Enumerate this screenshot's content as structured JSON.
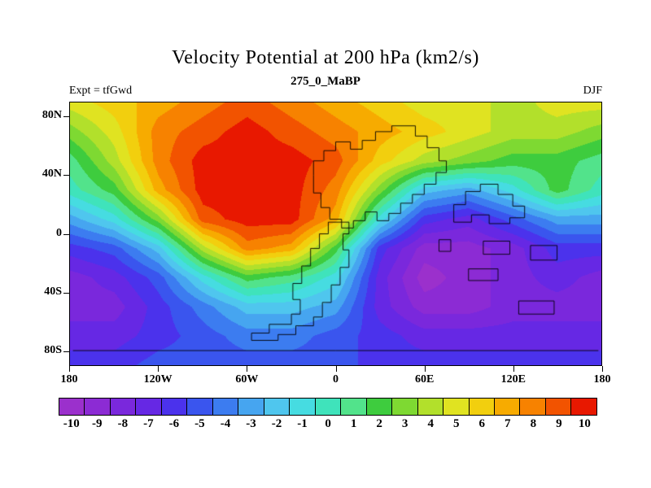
{
  "title": "Velocity Potential at 200 hPa (km2/s)",
  "subtitle": "275_0_MaBP",
  "experiment_label": "Expt = tfGwd",
  "season_label": "DJF",
  "colorbar": {
    "labels": [
      "-10",
      "-9",
      "-8",
      "-7",
      "-6",
      "-5",
      "-4",
      "-3",
      "-2",
      "-1",
      "0",
      "1",
      "2",
      "3",
      "4",
      "5",
      "6",
      "7",
      "8",
      "9",
      "10"
    ]
  },
  "chart_data": {
    "type": "heatmap",
    "title": "Velocity Potential at 200 hPa (km2/s)",
    "subtitle": "275_0_MaBP",
    "experiment": "tfGwd",
    "season": "DJF",
    "units": "km2/s",
    "lon_range": [
      -180,
      180
    ],
    "lat_range": [
      -90,
      90
    ],
    "x_ticks": [
      {
        "lon": -180,
        "label": "180"
      },
      {
        "lon": -120,
        "label": "120W"
      },
      {
        "lon": -60,
        "label": "60W"
      },
      {
        "lon": 0,
        "label": "0"
      },
      {
        "lon": 60,
        "label": "60E"
      },
      {
        "lon": 120,
        "label": "120E"
      },
      {
        "lon": 180,
        "label": "180"
      }
    ],
    "y_ticks": [
      {
        "lat": 80,
        "label": "80N"
      },
      {
        "lat": 40,
        "label": "40N"
      },
      {
        "lat": 0,
        "label": "0"
      },
      {
        "lat": -40,
        "label": "40S"
      },
      {
        "lat": -80,
        "label": "80S"
      }
    ],
    "levels": [
      -10,
      -9,
      -8,
      -7,
      -6,
      -5,
      -4,
      -3,
      -2,
      -1,
      0,
      1,
      2,
      3,
      4,
      5,
      6,
      7,
      8,
      9,
      10
    ],
    "colors": [
      "#9b30cc",
      "#8c2bd4",
      "#7a28dc",
      "#6628e4",
      "#4b32ec",
      "#3a55ee",
      "#3c7cf0",
      "#46a5f0",
      "#4fc6ee",
      "#46dce1",
      "#3fe3bb",
      "#52e38b",
      "#3ecc3e",
      "#7ed932",
      "#b2e02b",
      "#e0e321",
      "#f2cf0e",
      "#f7ab00",
      "#f78200",
      "#f25300",
      "#e81800"
    ],
    "grid": {
      "lons": [
        -180,
        -150,
        -120,
        -90,
        -60,
        -30,
        0,
        30,
        60,
        90,
        120,
        150,
        180
      ],
      "lats": [
        90,
        70,
        50,
        30,
        10,
        -10,
        -30,
        -50,
        -70,
        -90
      ],
      "values": [
        [
          5,
          6,
          7,
          8,
          9,
          8,
          7,
          6,
          5,
          5,
          4,
          5,
          5
        ],
        [
          3,
          5,
          8,
          9,
          10,
          9,
          8,
          7,
          6,
          5,
          4,
          4,
          3
        ],
        [
          1,
          4,
          8,
          10,
          10,
          10,
          9,
          6,
          4,
          3,
          2,
          2,
          1
        ],
        [
          0,
          2,
          7,
          10,
          10,
          10,
          8,
          3,
          -2,
          -3,
          -1,
          2,
          0
        ],
        [
          -3,
          -1,
          3,
          9,
          10,
          10,
          7,
          -1,
          -6,
          -7,
          -5,
          -3,
          -3
        ],
        [
          -6,
          -5,
          -2,
          4,
          8,
          7,
          2,
          -6,
          -9,
          -9,
          -8,
          -6,
          -6
        ],
        [
          -8,
          -7,
          -5,
          -1,
          2,
          1,
          -1,
          -7,
          -10,
          -9,
          -8,
          -7,
          -8
        ],
        [
          -8,
          -8,
          -6,
          -4,
          -2,
          -2,
          -3,
          -7,
          -9,
          -9,
          -8,
          -8,
          -8
        ],
        [
          -7,
          -7,
          -6,
          -5,
          -4,
          -4,
          -5,
          -6,
          -7,
          -7,
          -7,
          -7,
          -7
        ],
        [
          -6,
          -6,
          -5,
          -5,
          -5,
          -5,
          -5,
          -6,
          -6,
          -6,
          -6,
          -6,
          -6
        ]
      ]
    },
    "coastlines": [
      [
        [
          -15,
          40
        ],
        [
          -15,
          50
        ],
        [
          -8,
          50
        ],
        [
          -8,
          57
        ],
        [
          0,
          57
        ],
        [
          0,
          63
        ],
        [
          10,
          63
        ],
        [
          10,
          58
        ],
        [
          18,
          58
        ],
        [
          18,
          64
        ],
        [
          27,
          64
        ],
        [
          27,
          70
        ],
        [
          38,
          70
        ],
        [
          38,
          74
        ],
        [
          54,
          74
        ],
        [
          54,
          67
        ],
        [
          62,
          67
        ],
        [
          62,
          59
        ],
        [
          70,
          59
        ],
        [
          70,
          50
        ],
        [
          75,
          50
        ],
        [
          75,
          42
        ],
        [
          68,
          42
        ],
        [
          68,
          34
        ],
        [
          60,
          34
        ],
        [
          60,
          27
        ],
        [
          52,
          27
        ],
        [
          52,
          21
        ],
        [
          44,
          21
        ],
        [
          44,
          14
        ],
        [
          36,
          14
        ],
        [
          36,
          9
        ],
        [
          28,
          9
        ],
        [
          28,
          15
        ],
        [
          20,
          15
        ],
        [
          20,
          9
        ],
        [
          12,
          9
        ],
        [
          12,
          4
        ],
        [
          4,
          4
        ],
        [
          4,
          10
        ],
        [
          -4,
          10
        ],
        [
          -4,
          18
        ],
        [
          -10,
          18
        ],
        [
          -10,
          28
        ],
        [
          -15,
          28
        ],
        [
          -15,
          40
        ]
      ],
      [
        [
          2,
          8
        ],
        [
          -5,
          8
        ],
        [
          -5,
          0
        ],
        [
          -11,
          0
        ],
        [
          -11,
          -10
        ],
        [
          -17,
          -10
        ],
        [
          -17,
          -22
        ],
        [
          -23,
          -22
        ],
        [
          -23,
          -34
        ],
        [
          -29,
          -34
        ],
        [
          -29,
          -45
        ],
        [
          -24,
          -45
        ],
        [
          -24,
          -55
        ],
        [
          -30,
          -55
        ],
        [
          -30,
          -62
        ],
        [
          -45,
          -62
        ],
        [
          -45,
          -68
        ],
        [
          -57,
          -68
        ],
        [
          -57,
          -73
        ],
        [
          -39,
          -73
        ],
        [
          -39,
          -69
        ],
        [
          -27,
          -69
        ],
        [
          -27,
          -63
        ],
        [
          -15,
          -63
        ],
        [
          -15,
          -57
        ],
        [
          -9,
          -57
        ],
        [
          -9,
          -47
        ],
        [
          -3,
          -47
        ],
        [
          -3,
          -35
        ],
        [
          3,
          -35
        ],
        [
          3,
          -23
        ],
        [
          9,
          -23
        ],
        [
          9,
          -11
        ],
        [
          5,
          -11
        ],
        [
          5,
          0
        ],
        [
          9,
          0
        ],
        [
          9,
          8
        ],
        [
          2,
          8
        ]
      ],
      [
        [
          80,
          8
        ],
        [
          80,
          20
        ],
        [
          88,
          20
        ],
        [
          88,
          29
        ],
        [
          98,
          29
        ],
        [
          98,
          34
        ],
        [
          110,
          34
        ],
        [
          110,
          27
        ],
        [
          120,
          27
        ],
        [
          120,
          19
        ],
        [
          128,
          19
        ],
        [
          128,
          11
        ],
        [
          118,
          11
        ],
        [
          118,
          7
        ],
        [
          104,
          7
        ],
        [
          104,
          13
        ],
        [
          92,
          13
        ],
        [
          92,
          8
        ],
        [
          80,
          8
        ]
      ],
      [
        [
          100,
          -5
        ],
        [
          118,
          -5
        ],
        [
          118,
          -14
        ],
        [
          100,
          -14
        ],
        [
          100,
          -5
        ]
      ],
      [
        [
          90,
          -24
        ],
        [
          110,
          -24
        ],
        [
          110,
          -32
        ],
        [
          90,
          -32
        ],
        [
          90,
          -24
        ]
      ],
      [
        [
          124,
          -46
        ],
        [
          148,
          -46
        ],
        [
          148,
          -55
        ],
        [
          124,
          -55
        ],
        [
          124,
          -46
        ]
      ],
      [
        [
          70,
          -4
        ],
        [
          78,
          -4
        ],
        [
          78,
          -12
        ],
        [
          70,
          -12
        ],
        [
          70,
          -4
        ]
      ],
      [
        [
          132,
          -8
        ],
        [
          150,
          -8
        ],
        [
          150,
          -18
        ],
        [
          132,
          -18
        ],
        [
          132,
          -8
        ]
      ],
      [
        [
          -178,
          -80
        ],
        [
          178,
          -80
        ]
      ]
    ]
  }
}
